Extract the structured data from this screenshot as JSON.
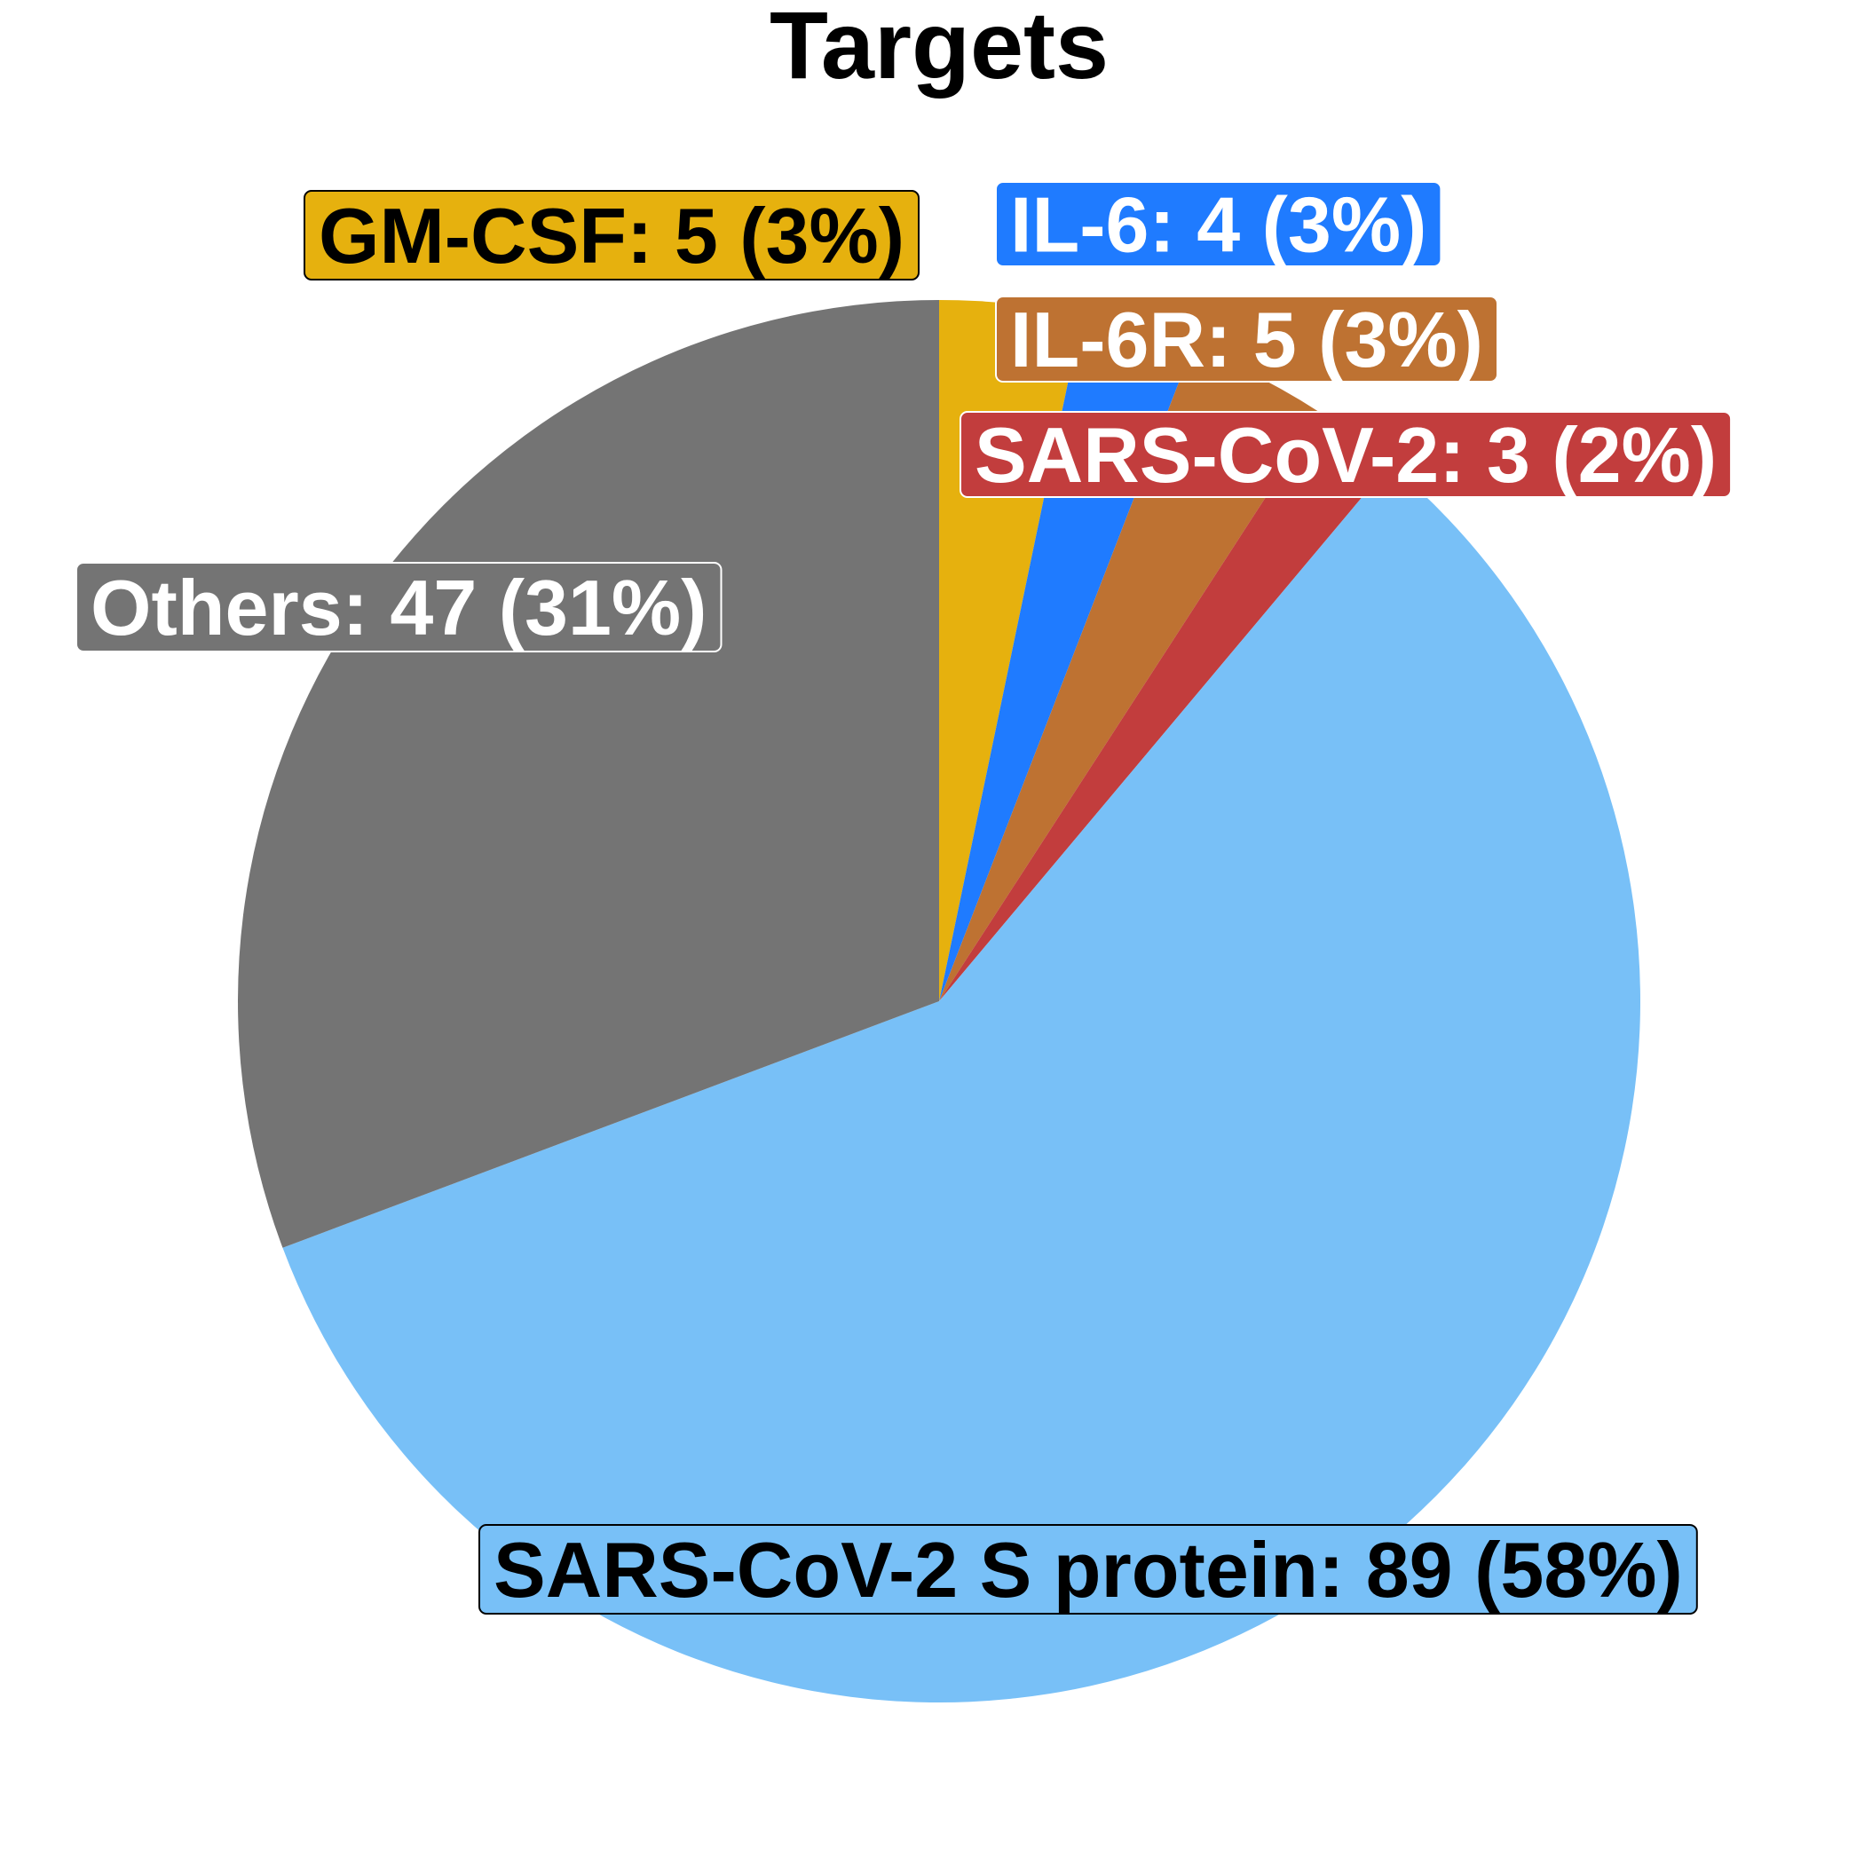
{
  "chart_data": {
    "type": "pie",
    "title": "Targets",
    "start_angle": "12 o'clock",
    "direction": "clockwise",
    "slices": [
      {
        "name": "GM-CSF",
        "value": 5,
        "percent": "3%",
        "label": "GM-CSF: 5 (3%)",
        "color": "#E6B10E",
        "text_color": "#000000"
      },
      {
        "name": "IL-6",
        "value": 4,
        "percent": "3%",
        "label": "IL-6: 4 (3%)",
        "color": "#1F7BFF",
        "text_color": "#FFFFFF"
      },
      {
        "name": "IL-6R",
        "value": 5,
        "percent": "3%",
        "label": "IL-6R: 5 (3%)",
        "color": "#BE7232",
        "text_color": "#FFFFFF"
      },
      {
        "name": "SARS-CoV-2",
        "value": 3,
        "percent": "2%",
        "label": "SARS-CoV-2: 3 (2%)",
        "color": "#C23D3D",
        "text_color": "#FFFFFF"
      },
      {
        "name": "SARS-CoV-2 S protein",
        "value": 89,
        "percent": "58%",
        "label": "SARS-CoV-2 S protein: 89 (58%)",
        "color": "#78C0F7",
        "text_color": "#000000"
      },
      {
        "name": "Others",
        "value": 47,
        "percent": "31%",
        "label": "Others: 47 (31%)",
        "color": "#747474",
        "text_color": "#FFFFFF"
      }
    ]
  }
}
